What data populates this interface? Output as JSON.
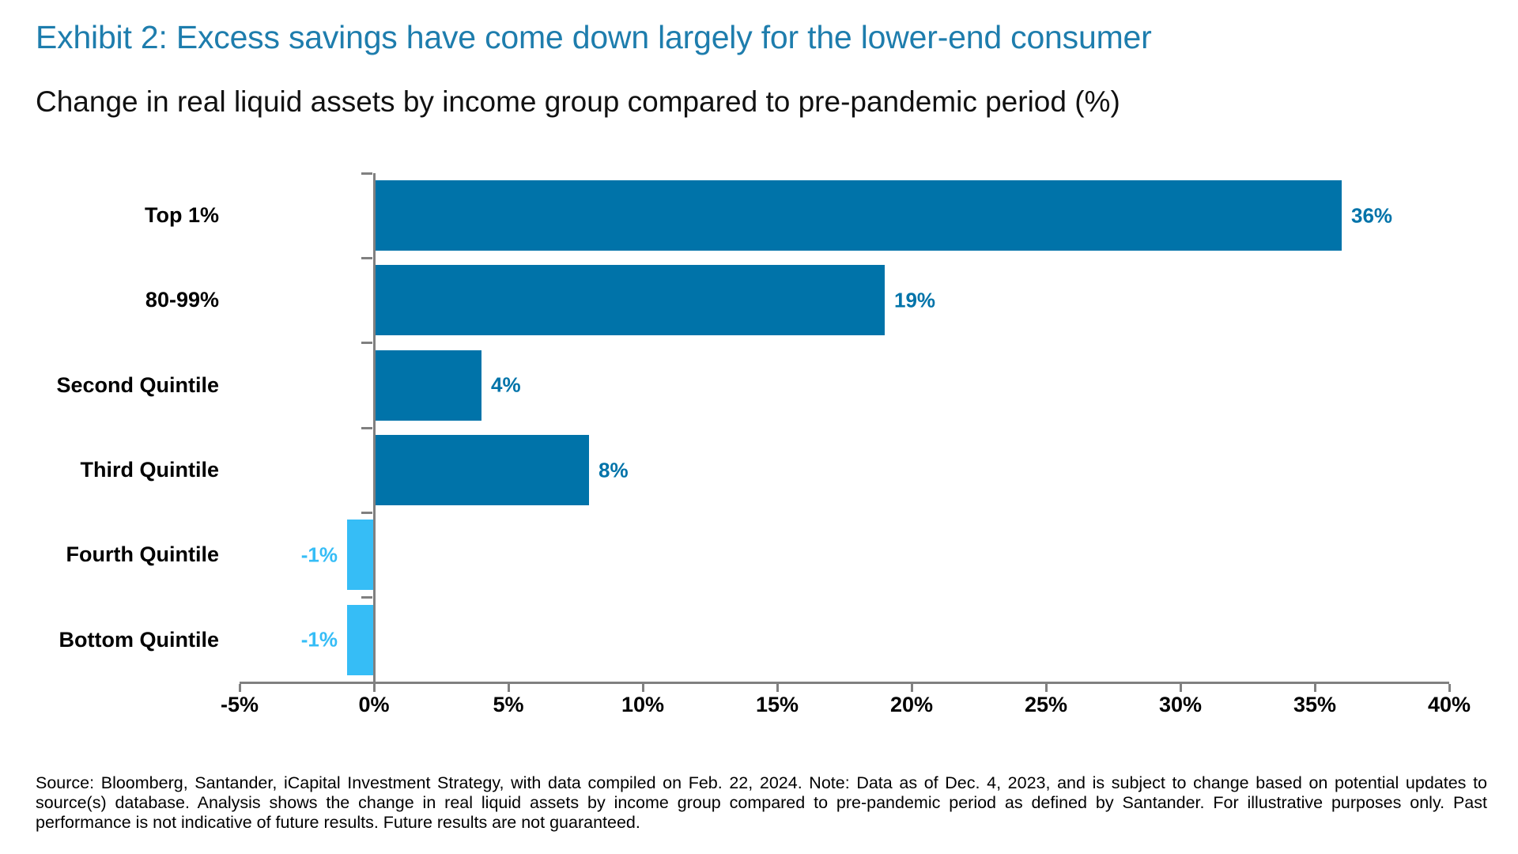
{
  "page": {
    "title": "Exhibit 2: Excess savings have come down largely for the lower-end consumer",
    "subtitle": "Change in real liquid assets by income group compared to pre-pandemic period (%)",
    "source": "Source: Bloomberg, Santander, iCapital Investment Strategy, with data compiled on Feb. 22, 2024. Note: Data as of Dec. 4, 2023, and is subject to change based on potential updates to source(s) database. Analysis shows the change in real liquid assets by income group compared to pre-pandemic period as defined by Santander. For illustrative purposes only. Past performance is not indicative of future results. Future results are not guaranteed."
  },
  "colors": {
    "title_blue": "#1E7DAD",
    "bar_positive": "#0073A9",
    "bar_negative": "#36BDF6",
    "axis_gray": "#808080",
    "text_black": "#000000"
  },
  "chart_data": {
    "type": "bar",
    "orientation": "horizontal",
    "title": "Exhibit 2: Excess savings have come down largely for the lower-end consumer",
    "subtitle": "Change in real liquid assets by income group compared to pre-pandemic period (%)",
    "categories": [
      "Top 1%",
      "80-99%",
      "Second Quintile",
      "Third Quintile",
      "Fourth Quintile",
      "Bottom Quintile"
    ],
    "values": [
      36,
      19,
      4,
      8,
      -1,
      -1
    ],
    "value_labels": [
      "36%",
      "19%",
      "4%",
      "8%",
      "-1%",
      "-1%"
    ],
    "xlim": [
      -5,
      40
    ],
    "x_tick_values": [
      -5,
      0,
      5,
      10,
      15,
      20,
      25,
      30,
      35,
      40
    ],
    "x_ticks": [
      "-5%",
      "0%",
      "5%",
      "10%",
      "15%",
      "20%",
      "25%",
      "30%",
      "35%",
      "40%"
    ],
    "xlabel": "",
    "ylabel": "",
    "grid": false,
    "legend": false
  }
}
